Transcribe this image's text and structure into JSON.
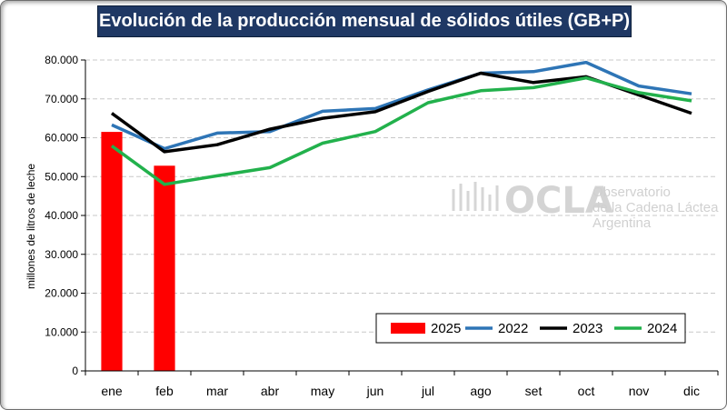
{
  "title": "Evolución de la producción mensual de sólidos útiles (GB+P)",
  "watermark": {
    "brand": "OCLA",
    "line1": "Observatorio",
    "line2": "de la Cadena Láctea",
    "line3": "Argentina"
  },
  "chart_data": {
    "type": "bar+line",
    "ylabel": "millones de litros de leche",
    "ylim": [
      0,
      80000
    ],
    "ytick_values": [
      0,
      10000,
      20000,
      30000,
      40000,
      50000,
      60000,
      70000,
      80000
    ],
    "ytick_labels": [
      "0",
      "10.000",
      "20.000",
      "30.000",
      "40.000",
      "50.000",
      "60.000",
      "70.000",
      "80.000"
    ],
    "categories": [
      "ene",
      "feb",
      "mar",
      "abr",
      "may",
      "jun",
      "jul",
      "ago",
      "set",
      "oct",
      "nov",
      "dic"
    ],
    "grid": true,
    "legend_position": "bottom-right",
    "bar_series": [
      {
        "name": "2025",
        "color": "#ff0000",
        "values": [
          61500,
          52800
        ]
      }
    ],
    "line_series": [
      {
        "name": "2022",
        "color": "#2e75b6",
        "values": [
          63300,
          57200,
          61200,
          61600,
          66800,
          67500,
          72300,
          76600,
          77000,
          79400,
          73300,
          71300
        ]
      },
      {
        "name": "2023",
        "color": "#000000",
        "values": [
          66300,
          56400,
          58200,
          62200,
          65000,
          66700,
          71900,
          76600,
          74200,
          75700,
          71000,
          66300
        ]
      },
      {
        "name": "2024",
        "color": "#22b14c",
        "values": [
          57900,
          48000,
          50200,
          52300,
          58600,
          61600,
          69000,
          72100,
          72900,
          75400,
          71600,
          69500
        ]
      }
    ]
  }
}
